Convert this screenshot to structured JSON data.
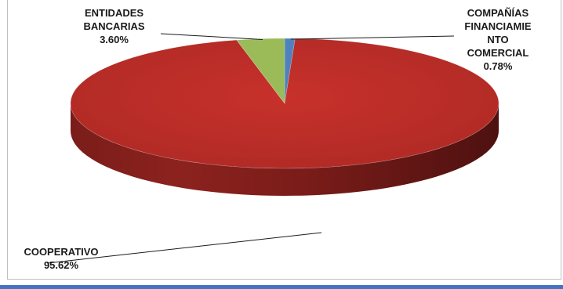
{
  "chart_data": {
    "type": "pie",
    "title": "",
    "slices": [
      {
        "name_lines": [
          "COMPAÑÍAS",
          "FINANCIAMIE",
          "NTO",
          "COMERCIAL"
        ],
        "value": 0.78,
        "value_label": "0.78%",
        "color": "#4f81bd"
      },
      {
        "name_lines": [
          "COOPERATIVO"
        ],
        "value": 95.62,
        "value_label": "95.62%",
        "color": "#c0504d"
      },
      {
        "name_lines": [
          "ENTIDADES",
          "BANCARIAS"
        ],
        "value": 3.6,
        "value_label": "3.60%",
        "color": "#9bbb59"
      }
    ]
  }
}
